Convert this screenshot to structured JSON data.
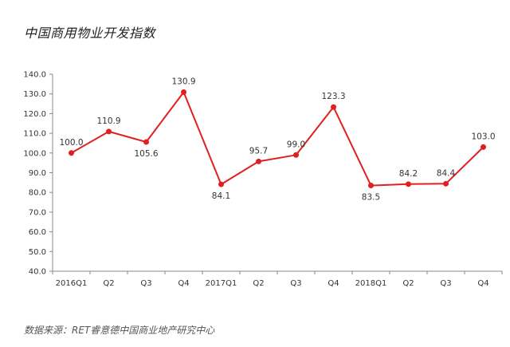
{
  "title": "中国商用物业开发指数",
  "source": "数据来源：RET睿意德中国商业地产研究中心",
  "chart_data": {
    "type": "line",
    "title": "中国商用物业开发指数",
    "xlabel": "",
    "ylabel": "",
    "categories": [
      "2016Q1",
      "Q2",
      "Q3",
      "Q4",
      "2017Q1",
      "Q2",
      "Q3",
      "Q4",
      "2018Q1",
      "Q2",
      "Q3",
      "Q4"
    ],
    "series": [
      {
        "values": [
          100.0,
          110.9,
          105.6,
          130.9,
          84.1,
          95.7,
          99.0,
          123.3,
          83.5,
          84.2,
          84.4,
          103.0
        ]
      }
    ],
    "data_labels": [
      "100.0",
      "110.9",
      "105.6",
      "130.9",
      "84.1",
      "95.7",
      "99.0",
      "123.3",
      "83.5",
      "84.2",
      "84.4",
      "103.0"
    ],
    "ylim": [
      40,
      140
    ],
    "yticks": [
      "40.0",
      "50.0",
      "60.0",
      "70.0",
      "80.0",
      "90.0",
      "100.0",
      "110.0",
      "120.0",
      "130.0",
      "140.0"
    ],
    "grid": false,
    "legend": "none",
    "line_color": "#e02020",
    "axis_color": "#888888"
  }
}
